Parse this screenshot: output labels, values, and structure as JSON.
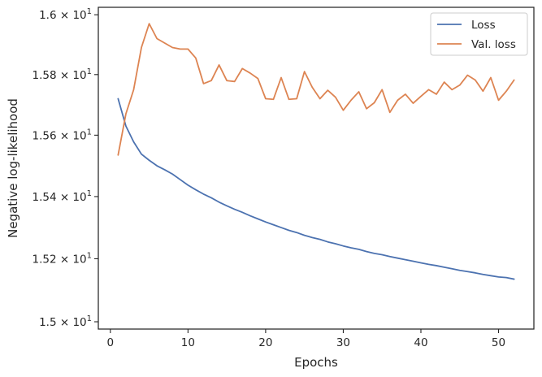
{
  "chart_data": {
    "type": "line",
    "title": "",
    "xlabel": "Epochs",
    "ylabel": "Negative log-likelihood",
    "y_scale": "log",
    "xlim": [
      -1.55,
      54.55
    ],
    "ylim": [
      14.977,
      16.025
    ],
    "x_ticks": [
      0,
      10,
      20,
      30,
      40,
      50
    ],
    "x_tick_labels": [
      "0",
      "10",
      "20",
      "30",
      "40",
      "50"
    ],
    "y_ticks": [
      15.0,
      15.2,
      15.4,
      15.6,
      15.8,
      16.0
    ],
    "y_tick_mantissas": [
      "1.5",
      "1.52",
      "1.54",
      "1.56",
      "1.58",
      "1.6"
    ],
    "y_tick_base": "× 10",
    "y_tick_exponent": "1",
    "grid": false,
    "legend_position": "top-right",
    "x": [
      1,
      2,
      3,
      4,
      5,
      6,
      7,
      8,
      9,
      10,
      11,
      12,
      13,
      14,
      15,
      16,
      17,
      18,
      19,
      20,
      21,
      22,
      23,
      24,
      25,
      26,
      27,
      28,
      29,
      30,
      31,
      32,
      33,
      34,
      35,
      36,
      37,
      38,
      39,
      40,
      41,
      42,
      43,
      44,
      45,
      46,
      47,
      48,
      49,
      50,
      51,
      52
    ],
    "series": [
      {
        "name": "Loss",
        "color": "#4c72b0",
        "values": [
          15.72,
          15.63,
          15.578,
          15.538,
          15.518,
          15.5,
          15.487,
          15.473,
          15.455,
          15.437,
          15.422,
          15.408,
          15.396,
          15.382,
          15.37,
          15.359,
          15.349,
          15.338,
          15.328,
          15.318,
          15.309,
          15.3,
          15.291,
          15.284,
          15.275,
          15.268,
          15.262,
          15.254,
          15.248,
          15.241,
          15.235,
          15.23,
          15.223,
          15.217,
          15.213,
          15.207,
          15.202,
          15.197,
          15.192,
          15.187,
          15.182,
          15.178,
          15.173,
          15.168,
          15.163,
          15.159,
          15.155,
          15.15,
          15.146,
          15.142,
          15.14,
          15.135
        ]
      },
      {
        "name": "Val. loss",
        "color": "#dd8452",
        "values": [
          15.535,
          15.67,
          15.75,
          15.89,
          15.97,
          15.92,
          15.905,
          15.89,
          15.885,
          15.885,
          15.855,
          15.77,
          15.78,
          15.832,
          15.78,
          15.777,
          15.82,
          15.805,
          15.787,
          15.72,
          15.718,
          15.79,
          15.718,
          15.72,
          15.81,
          15.758,
          15.72,
          15.748,
          15.725,
          15.682,
          15.715,
          15.743,
          15.687,
          15.707,
          15.75,
          15.675,
          15.715,
          15.735,
          15.705,
          15.728,
          15.75,
          15.735,
          15.775,
          15.75,
          15.765,
          15.798,
          15.782,
          15.745,
          15.79,
          15.715,
          15.745,
          15.782
        ]
      }
    ]
  }
}
